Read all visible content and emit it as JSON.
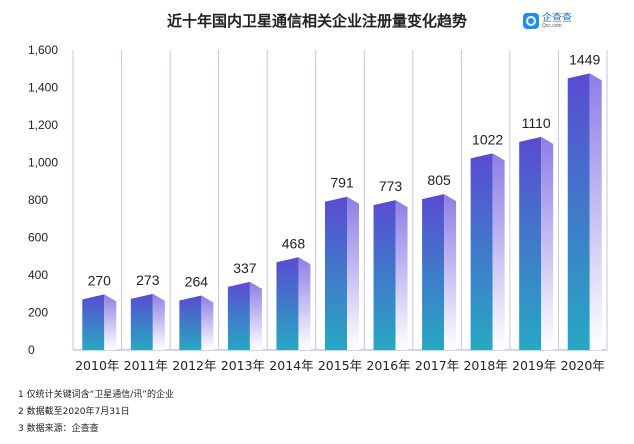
{
  "header": {
    "title": "近十年国内卫星通信相关企业注册量变化趋势",
    "logo_name": "企查查",
    "logo_domain": "Qcc.com",
    "logo_color": "#1e8cf0"
  },
  "chart_data": {
    "type": "bar",
    "title": "近十年国内卫星通信相关企业注册量变化趋势",
    "categories": [
      "2010年",
      "2011年",
      "2012年",
      "2013年",
      "2014年",
      "2015年",
      "2016年",
      "2017年",
      "2018年",
      "2019年",
      "2020年"
    ],
    "values": [
      270,
      273,
      264,
      337,
      468,
      791,
      773,
      805,
      1022,
      1110,
      1449
    ],
    "data_labels": [
      "270",
      "273",
      "264",
      "337",
      "468",
      "791",
      "773",
      "805",
      "1022",
      "1110",
      "1449"
    ],
    "ylim": [
      0,
      1600
    ],
    "yticks": [
      0,
      200,
      400,
      600,
      800,
      1000,
      1200,
      1400,
      1600
    ],
    "ytick_labels": [
      "0",
      "200",
      "400",
      "600",
      "800",
      "1,000",
      "1,200",
      "1,400",
      "1,600"
    ],
    "xlabel": "",
    "ylabel": "",
    "grid": "vertical category separators",
    "colors": {
      "bar_top": "#5a4bd2",
      "bar_bottom": "#27a8c2",
      "side": "#b4a8f0",
      "grid": "#c9c3ec"
    }
  },
  "notes": [
    "1 仅统计关键词含“卫星通信/讯”的企业",
    "2 数据截至2020年7月31日",
    "3 数据来源：企查查"
  ]
}
